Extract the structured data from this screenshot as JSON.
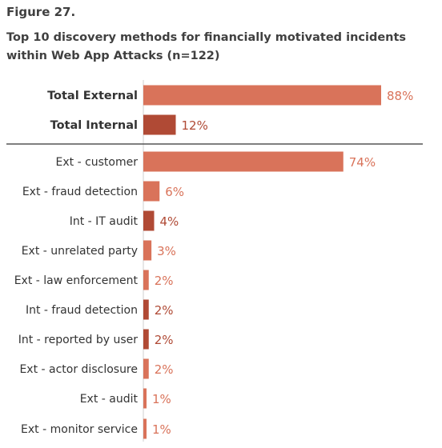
{
  "figure": {
    "label": "Figure 27.",
    "title": "Top 10 discovery methods for financially motivated incidents within Web App Attacks (n=122)"
  },
  "colors": {
    "external": "#d9735a",
    "internal": "#b04a35",
    "divider": "#555555",
    "axis": "#cfcfcf"
  },
  "chart_data": {
    "type": "bar",
    "orientation": "horizontal",
    "title": "Top 10 discovery methods for financially motivated incidents within Web App Attacks (n=122)",
    "xlim": [
      0,
      100
    ],
    "value_suffix": "%",
    "groups": [
      {
        "name": "totals",
        "categories": [
          "Total External",
          "Total Internal"
        ],
        "values": [
          88,
          12
        ],
        "labels": [
          "88%",
          "12%"
        ],
        "kind": [
          "external",
          "internal"
        ]
      },
      {
        "name": "methods",
        "categories": [
          "Ext - customer",
          "Ext - fraud detection",
          "Int - IT audit",
          "Ext - unrelated party",
          "Ext - law enforcement",
          "Int - fraud detection",
          "Int - reported by user",
          "Ext - actor disclosure",
          "Ext - audit",
          "Ext - monitor service"
        ],
        "values": [
          74,
          6,
          4,
          3,
          2,
          2,
          2,
          2,
          1,
          1
        ],
        "labels": [
          "74%",
          "6%",
          "4%",
          "3%",
          "2%",
          "2%",
          "2%",
          "2%",
          "1%",
          "1%"
        ],
        "kind": [
          "external",
          "external",
          "internal",
          "external",
          "external",
          "internal",
          "internal",
          "external",
          "external",
          "external"
        ]
      }
    ]
  }
}
